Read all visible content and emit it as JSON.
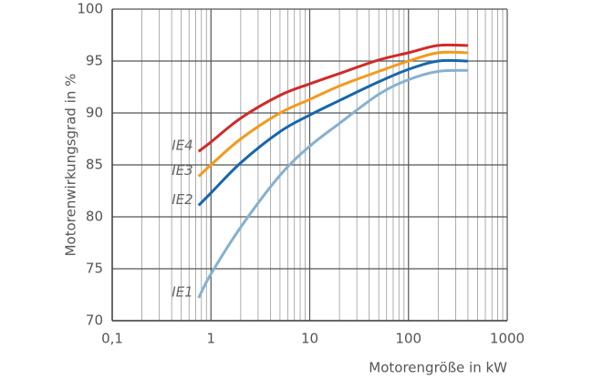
{
  "chart_data": {
    "type": "line",
    "x_label": "Motorengröße in kW",
    "y_label": "Motorenwirkungsgrad in %",
    "x_scale": "log",
    "grid": true,
    "minor_grid": true,
    "xlim": [
      0.1,
      1000
    ],
    "xticks": [
      {
        "value": 0.1,
        "label": "0,1"
      },
      1,
      10,
      100,
      1000
    ],
    "ylim": [
      70,
      100
    ],
    "yticks": [
      70,
      75,
      80,
      85,
      90,
      95,
      100
    ],
    "x": [
      0.75,
      1,
      2,
      5,
      10,
      20,
      50,
      100,
      200,
      400
    ],
    "series": [
      {
        "name": "IE4",
        "color": "#d12a2a",
        "values": [
          86.3,
          87.2,
          89.5,
          91.7,
          92.8,
          93.8,
          95.1,
          95.8,
          96.5,
          96.5
        ]
      },
      {
        "name": "IE3",
        "color": "#f39a1c",
        "values": [
          83.9,
          85.0,
          87.5,
          90.0,
          91.3,
          92.6,
          94.0,
          95.0,
          95.8,
          95.8
        ]
      },
      {
        "name": "IE2",
        "color": "#1766ad",
        "values": [
          81.1,
          82.3,
          85.2,
          88.2,
          89.8,
          91.2,
          93.0,
          94.2,
          95.0,
          95.0
        ]
      },
      {
        "name": "IE1",
        "color": "#86b1cf",
        "values": [
          72.2,
          74.5,
          79.0,
          84.0,
          86.8,
          89.0,
          91.8,
          93.2,
          94.0,
          94.1
        ]
      }
    ]
  }
}
